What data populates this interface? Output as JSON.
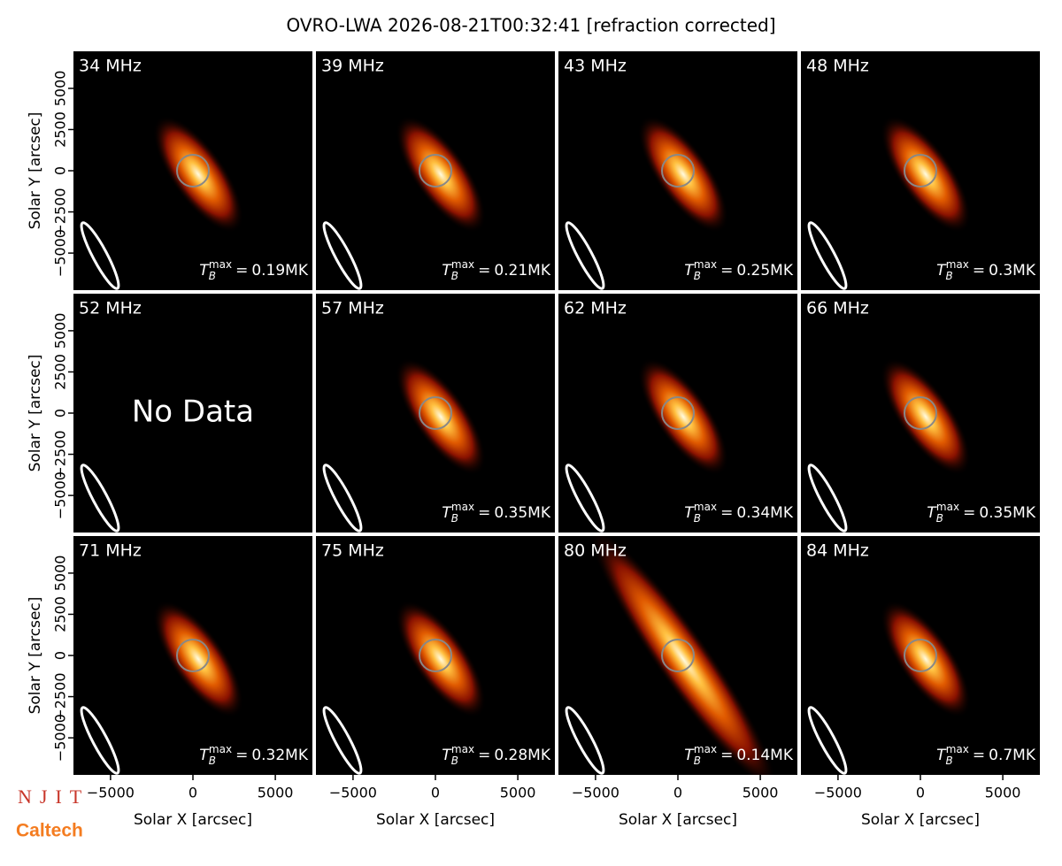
{
  "chart_data": {
    "type": "image",
    "title": "OVRO-LWA 2026-08-21T00:32:41 [refraction corrected]",
    "xlabel": "Solar X [arcsec]",
    "ylabel": "Solar Y [arcsec]",
    "categories": [
      "34 MHz",
      "39 MHz",
      "43 MHz",
      "48 MHz",
      "52 MHz",
      "57 MHz",
      "62 MHz",
      "66 MHz",
      "71 MHz",
      "75 MHz",
      "80 MHz",
      "84 MHz"
    ],
    "values": [
      0.19,
      0.21,
      0.25,
      0.3,
      null,
      0.35,
      0.34,
      0.35,
      0.32,
      0.28,
      0.14,
      0.7
    ],
    "value_labels": [
      "0.19MK",
      "0.21MK",
      "0.25MK",
      "0.3MK",
      null,
      "0.35MK",
      "0.34MK",
      "0.35MK",
      "0.32MK",
      "0.28MK",
      "0.14MK",
      "0.7MK"
    ],
    "tb_symbol": "T",
    "tb_sub": "B",
    "tb_sup": "max",
    "tb_equals": "=",
    "no_data_text": "No Data",
    "xlim": [
      -7250,
      7250
    ],
    "ylim": [
      -7250,
      7250
    ],
    "xticks": [
      {
        "value": -5000,
        "label": "−5000"
      },
      0,
      5000
    ],
    "yticks": [
      {
        "value": -5000,
        "label": "−5000"
      },
      {
        "value": -2500,
        "label": "−2500"
      },
      0,
      2500,
      5000
    ]
  },
  "logos": {
    "njit": "NJIT",
    "caltech": "Caltech"
  }
}
